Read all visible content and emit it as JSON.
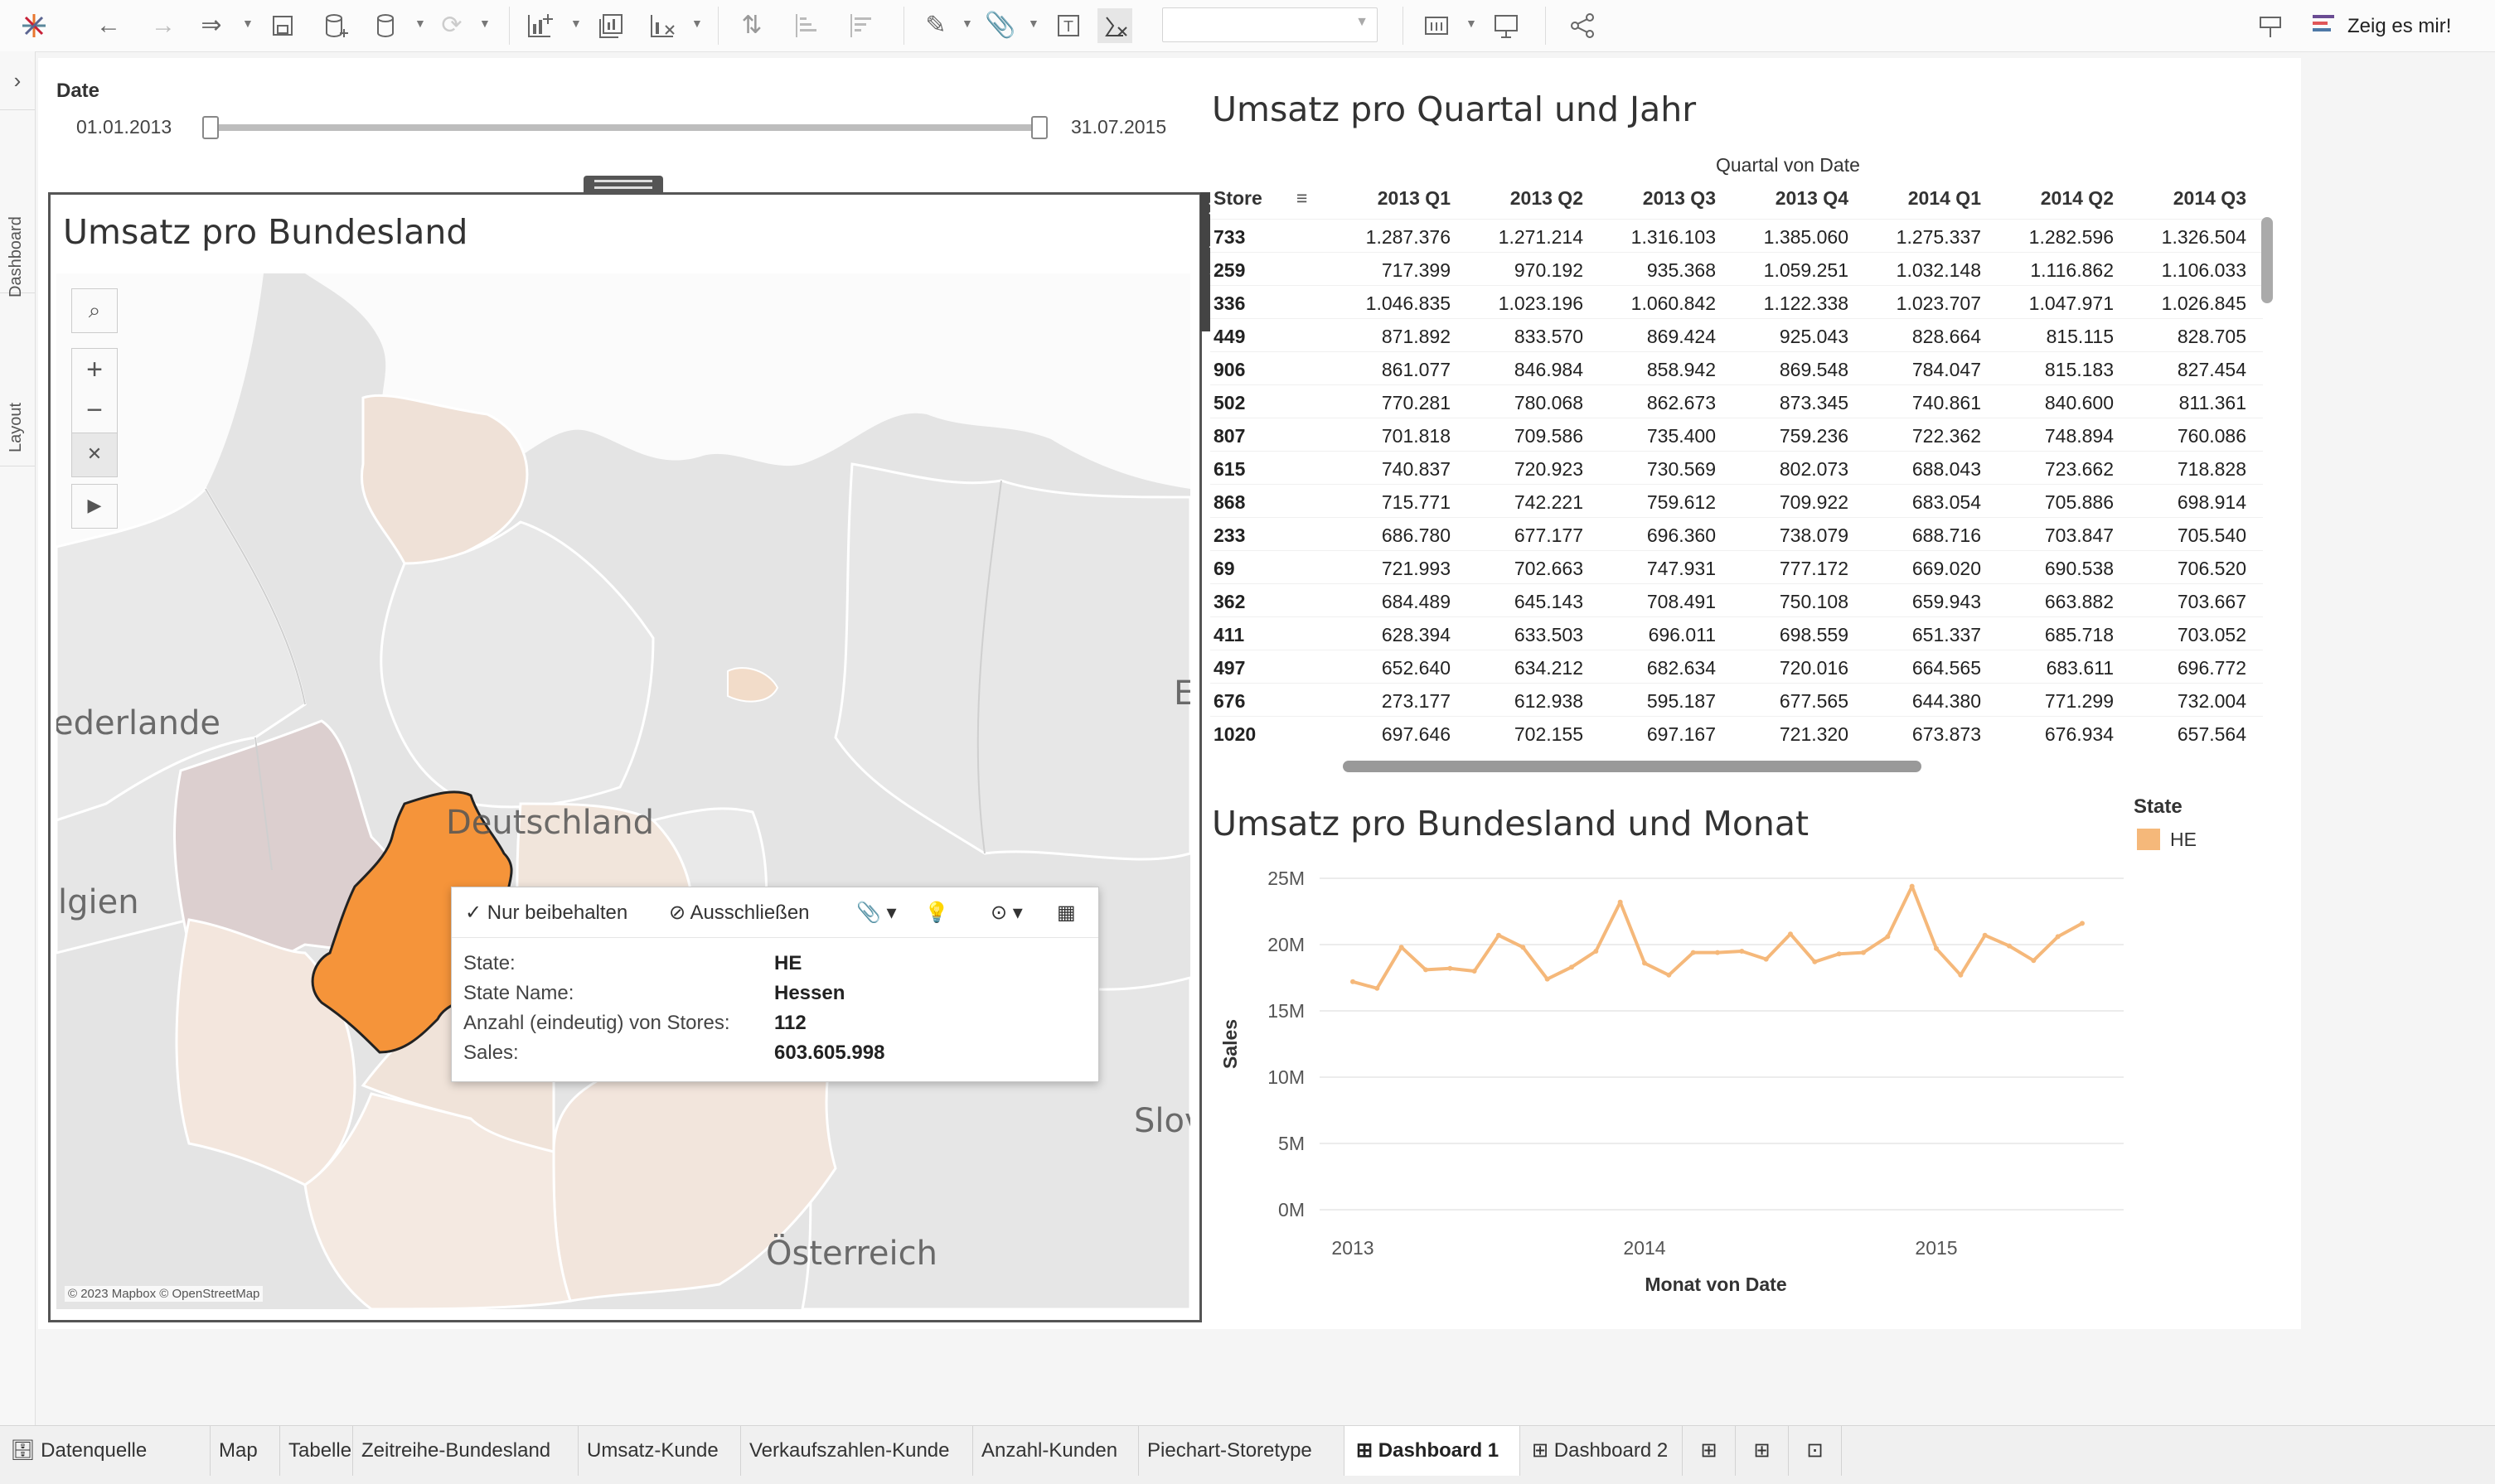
{
  "toolbar": {
    "show_me_label": "Zeig es mir!",
    "show_me_colors": [
      "#6a4c93",
      "#e15759",
      "#4e79a7"
    ]
  },
  "siderail": {
    "tabs": [
      "Dashboard",
      "Layout"
    ]
  },
  "date_filter": {
    "title": "Date",
    "start": "01.01.2013",
    "end": "31.07.2015"
  },
  "map_sheet": {
    "title": "Umsatz pro Bundesland",
    "attribution": "© 2023 Mapbox © OpenStreetMap",
    "place_labels": [
      "ederlande",
      "Deutschland",
      "lgien",
      "Österreich",
      "Slov",
      "E"
    ],
    "highlight_color": "#f5943a"
  },
  "tooltip": {
    "actions": [
      "Nur beibehalten",
      "Ausschließen"
    ],
    "rows": [
      {
        "key": "State:",
        "value": "HE"
      },
      {
        "key": "State Name:",
        "value": "Hessen"
      },
      {
        "key": "Anzahl (eindeutig) von Stores:",
        "value": "112"
      },
      {
        "key": "Sales:",
        "value": "603.605.998"
      }
    ]
  },
  "crosstab": {
    "title": "Umsatz pro Quartal und Jahr",
    "column_group": "Quartal von Date",
    "row_header": "Store",
    "columns": [
      "2013 Q1",
      "2013 Q2",
      "2013 Q3",
      "2013 Q4",
      "2014 Q1",
      "2014 Q2",
      "2014 Q3"
    ],
    "rows": [
      {
        "store": "733",
        "values": [
          "1.287.376",
          "1.271.214",
          "1.316.103",
          "1.385.060",
          "1.275.337",
          "1.282.596",
          "1.326.504"
        ]
      },
      {
        "store": "259",
        "values": [
          "717.399",
          "970.192",
          "935.368",
          "1.059.251",
          "1.032.148",
          "1.116.862",
          "1.106.033"
        ]
      },
      {
        "store": "336",
        "values": [
          "1.046.835",
          "1.023.196",
          "1.060.842",
          "1.122.338",
          "1.023.707",
          "1.047.971",
          "1.026.845"
        ]
      },
      {
        "store": "449",
        "values": [
          "871.892",
          "833.570",
          "869.424",
          "925.043",
          "828.664",
          "815.115",
          "828.705"
        ]
      },
      {
        "store": "906",
        "values": [
          "861.077",
          "846.984",
          "858.942",
          "869.548",
          "784.047",
          "815.183",
          "827.454"
        ]
      },
      {
        "store": "502",
        "values": [
          "770.281",
          "780.068",
          "862.673",
          "873.345",
          "740.861",
          "840.600",
          "811.361"
        ]
      },
      {
        "store": "807",
        "values": [
          "701.818",
          "709.586",
          "735.400",
          "759.236",
          "722.362",
          "748.894",
          "760.086"
        ]
      },
      {
        "store": "615",
        "values": [
          "740.837",
          "720.923",
          "730.569",
          "802.073",
          "688.043",
          "723.662",
          "718.828"
        ]
      },
      {
        "store": "868",
        "values": [
          "715.771",
          "742.221",
          "759.612",
          "709.922",
          "683.054",
          "705.886",
          "698.914"
        ]
      },
      {
        "store": "233",
        "values": [
          "686.780",
          "677.177",
          "696.360",
          "738.079",
          "688.716",
          "703.847",
          "705.540"
        ]
      },
      {
        "store": "69",
        "values": [
          "721.993",
          "702.663",
          "747.931",
          "777.172",
          "669.020",
          "690.538",
          "706.520"
        ]
      },
      {
        "store": "362",
        "values": [
          "684.489",
          "645.143",
          "708.491",
          "750.108",
          "659.943",
          "663.882",
          "703.667"
        ]
      },
      {
        "store": "411",
        "values": [
          "628.394",
          "633.503",
          "696.011",
          "698.559",
          "651.337",
          "685.718",
          "703.052"
        ]
      },
      {
        "store": "497",
        "values": [
          "652.640",
          "634.212",
          "682.634",
          "720.016",
          "664.565",
          "683.611",
          "696.772"
        ]
      },
      {
        "store": "676",
        "values": [
          "273.177",
          "612.938",
          "595.187",
          "677.565",
          "644.380",
          "771.299",
          "732.004"
        ]
      },
      {
        "store": "1020",
        "values": [
          "697.646",
          "702.155",
          "697.167",
          "721.320",
          "673.873",
          "676.934",
          "657.564"
        ]
      }
    ]
  },
  "line_sheet": {
    "title": "Umsatz pro Bundesland und Monat",
    "legend_title": "State",
    "legend_item": "HE"
  },
  "chart_data": {
    "type": "line",
    "xlabel": "Monat von Date",
    "ylabel": "Sales",
    "x_ticks": [
      "2013",
      "2014",
      "2015"
    ],
    "y_ticks": [
      "0M",
      "5M",
      "10M",
      "15M",
      "20M",
      "25M"
    ],
    "ylim": [
      0,
      25000000
    ],
    "grid": true,
    "legend_position": "top-right",
    "series": [
      {
        "name": "HE",
        "color": "#f5b87a",
        "x": [
          "2013-01",
          "2013-02",
          "2013-03",
          "2013-04",
          "2013-05",
          "2013-06",
          "2013-07",
          "2013-08",
          "2013-09",
          "2013-10",
          "2013-11",
          "2013-12",
          "2014-01",
          "2014-02",
          "2014-03",
          "2014-04",
          "2014-05",
          "2014-06",
          "2014-07",
          "2014-08",
          "2014-09",
          "2014-10",
          "2014-11",
          "2014-12",
          "2015-01",
          "2015-02",
          "2015-03",
          "2015-04",
          "2015-05",
          "2015-06",
          "2015-07"
        ],
        "values": [
          17200000,
          16700000,
          19800000,
          18100000,
          18200000,
          18000000,
          20700000,
          19800000,
          17400000,
          18300000,
          19500000,
          23200000,
          18600000,
          17700000,
          19400000,
          19400000,
          19500000,
          18900000,
          20800000,
          18700000,
          19300000,
          19400000,
          20600000,
          24400000,
          19700000,
          17700000,
          20700000,
          19900000,
          18800000,
          20600000,
          21600000
        ]
      }
    ]
  },
  "tabs": {
    "items": [
      "Datenquelle",
      "Map",
      "Tabelle",
      "Zeitreihe-Bundesland",
      "Umsatz-Kunde",
      "Verkaufszahlen-Kunde",
      "Anzahl-Kunden",
      "Piechart-Storetype",
      "Dashboard 1",
      "Dashboard 2"
    ],
    "active": "Dashboard 1"
  }
}
